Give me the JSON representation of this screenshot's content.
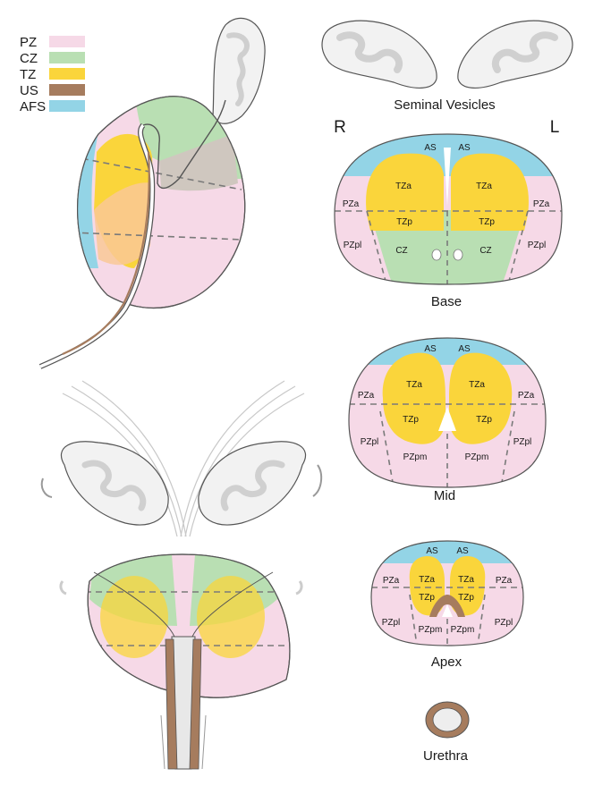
{
  "legend": [
    {
      "label": "PZ",
      "color": "#f6d9e7"
    },
    {
      "label": "CZ",
      "color": "#b9dfb3"
    },
    {
      "label": "TZ",
      "color": "#fad53b"
    },
    {
      "label": "US",
      "color": "#a67c5e"
    },
    {
      "label": "AFS",
      "color": "#93d4e6"
    }
  ],
  "colors": {
    "pz": "#f6d9e7",
    "cz": "#b9dfb3",
    "tz": "#fad53b",
    "us": "#a67c5e",
    "afs": "#93d4e6",
    "sv_fill": "#f2f2f2",
    "sv_inner": "#d9d9d9",
    "outline": "#555555",
    "dashed": "#7a7a7a"
  },
  "titles": {
    "seminal_vesicles": "Seminal Vesicles",
    "right": "R",
    "left": "L",
    "base": "Base",
    "mid": "Mid",
    "apex": "Apex",
    "urethra": "Urethra"
  },
  "base_zones": {
    "as_r": "AS",
    "as_l": "AS",
    "tza_r": "TZa",
    "tza_l": "TZa",
    "pza_r": "PZa",
    "pza_l": "PZa",
    "tzp_r": "TZp",
    "tzp_l": "TZp",
    "pzpl_r": "PZpl",
    "pzpl_l": "PZpl",
    "cz_r": "CZ",
    "cz_l": "CZ"
  },
  "mid_zones": {
    "as_r": "AS",
    "as_l": "AS",
    "tza_r": "TZa",
    "tza_l": "TZa",
    "pza_r": "PZa",
    "pza_l": "PZa",
    "tzp_r": "TZp",
    "tzp_l": "TZp",
    "pzpl_r": "PZpl",
    "pzpl_l": "PZpl",
    "pzpm_r": "PZpm",
    "pzpm_l": "PZpm"
  },
  "apex_zones": {
    "as_r": "AS",
    "as_l": "AS",
    "tza_r": "TZa",
    "tza_l": "TZa",
    "pza_r": "PZa",
    "pza_l": "PZa",
    "tzp_r": "TZp",
    "tzp_l": "TZp",
    "pzpl_r": "PZpl",
    "pzpl_l": "PZpl",
    "pzpm_r": "PZpm",
    "pzpm_l": "PZpm"
  }
}
